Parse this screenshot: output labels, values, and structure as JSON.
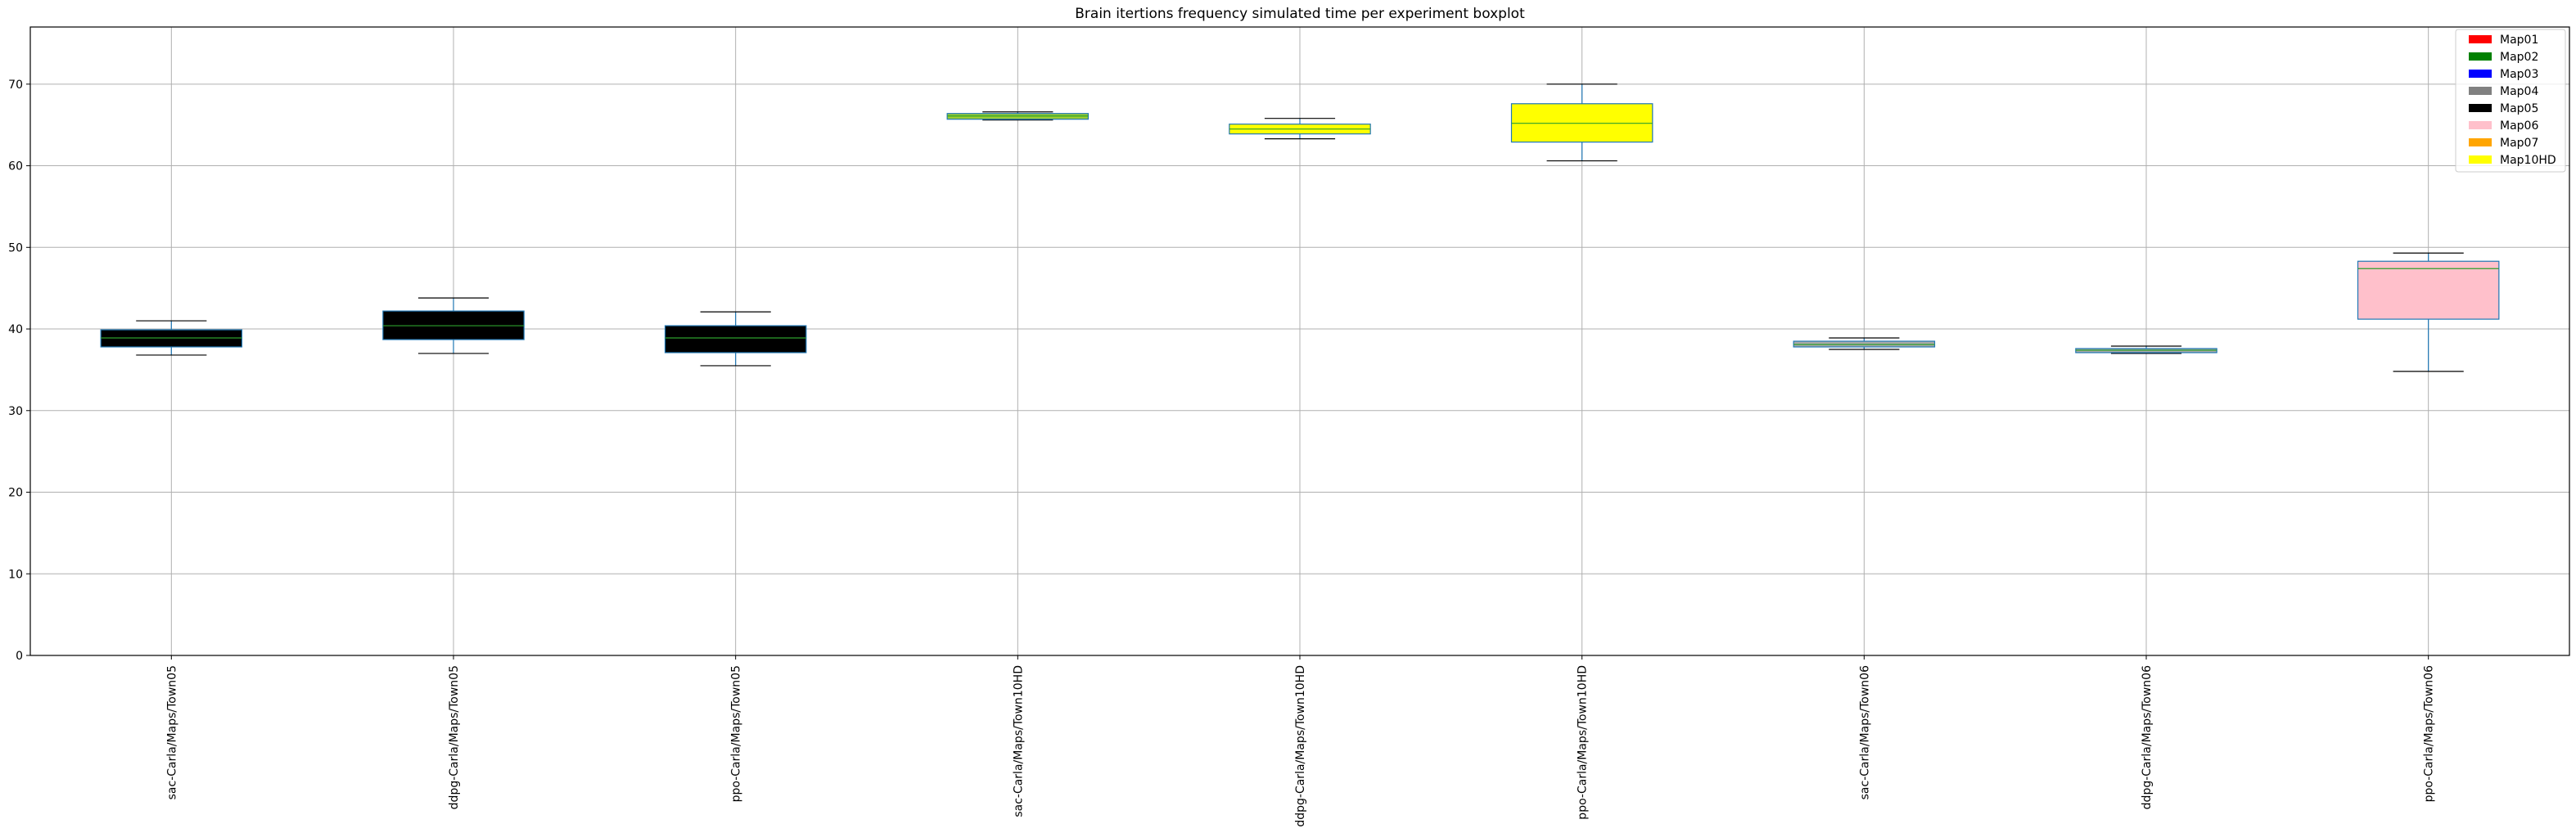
{
  "chart_data": {
    "type": "boxplot",
    "title": "Brain itertions frequency simulated time per experiment boxplot",
    "xlabel": "",
    "ylabel": "",
    "ylim": [
      0,
      77
    ],
    "yticks": [
      0,
      10,
      20,
      30,
      40,
      50,
      60,
      70
    ],
    "grid": true,
    "legend_position": "top-right",
    "legend": [
      {
        "label": "Map01",
        "color": "#ff0000"
      },
      {
        "label": "Map02",
        "color": "#008000"
      },
      {
        "label": "Map03",
        "color": "#0000ff"
      },
      {
        "label": "Map04",
        "color": "#808080"
      },
      {
        "label": "Map05",
        "color": "#000000"
      },
      {
        "label": "Map06",
        "color": "#ffc0cb"
      },
      {
        "label": "Map07",
        "color": "#ffa500"
      },
      {
        "label": "Map10HD",
        "color": "#ffff00"
      }
    ],
    "categories": [
      "sac-Carla/Maps/Town05",
      "ddpg-Carla/Maps/Town05",
      "ppo-Carla/Maps/Town05",
      "sac-Carla/Maps/Town10HD",
      "ddpg-Carla/Maps/Town10HD",
      "ppo-Carla/Maps/Town10HD",
      "sac-Carla/Maps/Town06",
      "ddpg-Carla/Maps/Town06",
      "ppo-Carla/Maps/Town06"
    ],
    "boxes": [
      {
        "whislo": 36.8,
        "q1": 37.8,
        "med": 38.9,
        "q3": 39.9,
        "whishi": 41.0,
        "color": "#000000"
      },
      {
        "whislo": 37.0,
        "q1": 38.7,
        "med": 40.4,
        "q3": 42.2,
        "whishi": 43.8,
        "color": "#000000"
      },
      {
        "whislo": 35.5,
        "q1": 37.1,
        "med": 38.9,
        "q3": 40.4,
        "whishi": 42.1,
        "color": "#000000"
      },
      {
        "whislo": 65.6,
        "q1": 65.7,
        "med": 66.1,
        "q3": 66.4,
        "whishi": 66.6,
        "color": "#9acd32"
      },
      {
        "whislo": 63.3,
        "q1": 63.9,
        "med": 64.5,
        "q3": 65.1,
        "whishi": 65.8,
        "color": "#ffff00"
      },
      {
        "whislo": 60.6,
        "q1": 62.9,
        "med": 65.2,
        "q3": 67.6,
        "whishi": 70.0,
        "color": "#ffff00"
      },
      {
        "whislo": 37.5,
        "q1": 37.8,
        "med": 38.1,
        "q3": 38.5,
        "whishi": 38.9,
        "color": "#a9a9a9"
      },
      {
        "whislo": 37.0,
        "q1": 37.1,
        "med": 37.4,
        "q3": 37.6,
        "whishi": 37.9,
        "color": "#a9a9a9"
      },
      {
        "whislo": 34.8,
        "q1": 41.2,
        "med": 47.4,
        "q3": 48.3,
        "whishi": 49.3,
        "color": "#ffc0cb"
      }
    ]
  }
}
